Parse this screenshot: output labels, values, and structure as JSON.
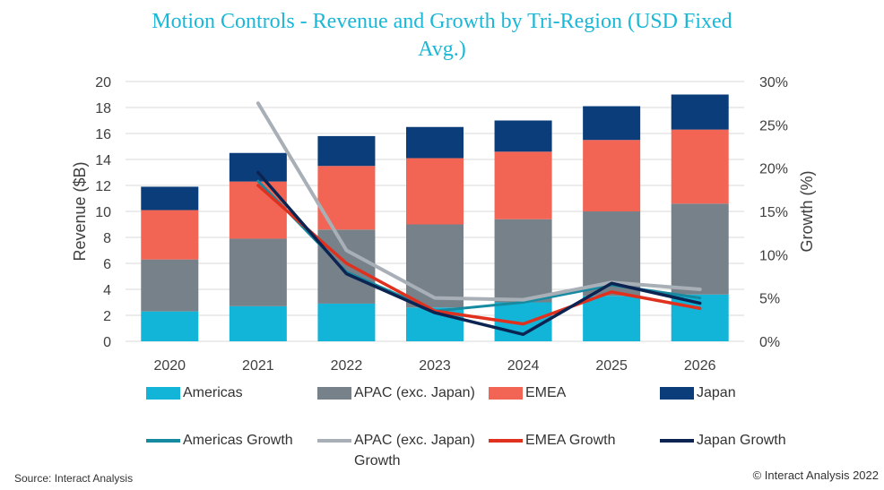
{
  "title_line1": "Motion Controls - Revenue and Growth by Tri-Region (USD Fixed",
  "title_line2": "Avg.)",
  "source": "Source: Interact Analysis",
  "copyright": "© Interact Analysis 2022",
  "colors": {
    "americas": "#12b5d8",
    "apac": "#76818a",
    "emea": "#f26555",
    "japan": "#0a3d7a",
    "americas_growth": "#168aa0",
    "apac_growth": "#a9afb6",
    "emea_growth": "#e0301e",
    "japan_growth": "#0c2452"
  },
  "chart_data": {
    "type": "bar",
    "stacked": true,
    "categories": [
      "2020",
      "2021",
      "2022",
      "2023",
      "2024",
      "2025",
      "2026"
    ],
    "series": [
      {
        "name": "Americas",
        "values": [
          2.3,
          2.7,
          2.9,
          2.6,
          3.0,
          3.5,
          3.6
        ]
      },
      {
        "name": "APAC (exc. Japan)",
        "values": [
          4.0,
          5.2,
          5.7,
          6.4,
          6.4,
          6.5,
          7.0
        ]
      },
      {
        "name": "EMEA",
        "values": [
          3.8,
          4.4,
          4.9,
          5.1,
          5.2,
          5.5,
          5.7
        ]
      },
      {
        "name": "Japan",
        "values": [
          1.8,
          2.2,
          2.3,
          2.4,
          2.4,
          2.6,
          2.7
        ]
      }
    ],
    "line_series": [
      {
        "name": "Americas Growth",
        "values": [
          null,
          18.5,
          8.0,
          3.5,
          4.5,
          6.5,
          5.0
        ]
      },
      {
        "name": "APAC (exc. Japan) Growth",
        "values": [
          null,
          27.5,
          10.5,
          5.0,
          4.8,
          6.8,
          6.0
        ]
      },
      {
        "name": "EMEA Growth",
        "values": [
          null,
          18.0,
          9.0,
          3.5,
          2.0,
          5.7,
          3.8
        ]
      },
      {
        "name": "Japan Growth",
        "values": [
          null,
          19.5,
          7.8,
          3.3,
          0.8,
          6.7,
          4.4
        ]
      }
    ],
    "ylabel": "Revenue ($B)",
    "y2label": "Growth (%)",
    "ylim": [
      0,
      20
    ],
    "y2lim": [
      0,
      30
    ],
    "yticks": [
      "0",
      "2",
      "4",
      "6",
      "8",
      "10",
      "12",
      "14",
      "16",
      "18",
      "20"
    ],
    "y2ticks": [
      "0%",
      "5%",
      "10%",
      "15%",
      "20%",
      "25%",
      "30%"
    ],
    "legend_position": "bottom"
  },
  "legend": {
    "bar_items": [
      "Americas",
      "APAC (exc. Japan)",
      "EMEA",
      "Japan"
    ],
    "line_items": [
      "Americas Growth",
      "APAC (exc. Japan)",
      "EMEA Growth",
      "Japan Growth"
    ],
    "line_item2_second_line": "Growth"
  }
}
